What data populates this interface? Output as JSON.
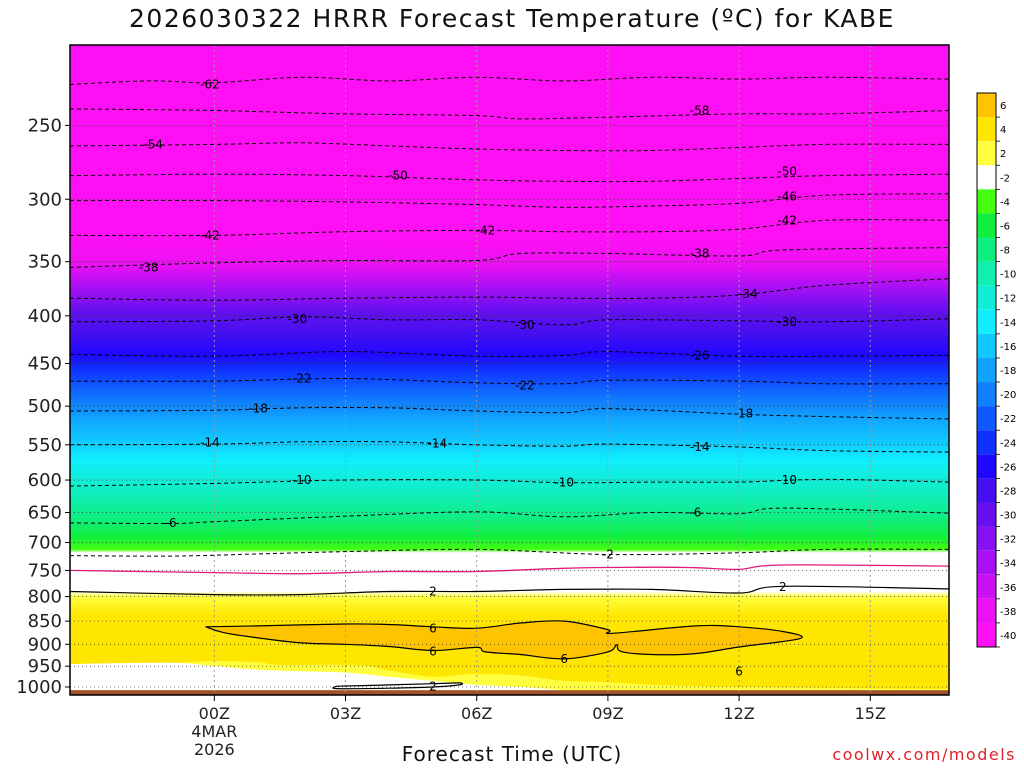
{
  "header": {
    "title": "2026030322 HRRR Forecast Temperature (ºC) for KABE",
    "xaxis_title": "Forecast Time (UTC)",
    "watermark": "coolwx.com/models"
  },
  "chart_data": {
    "type": "heatmap",
    "title": "2026030322 HRRR Forecast Temperature (ºC) for KABE",
    "xlabel": "Forecast Time (UTC)",
    "ylabel": "",
    "y_axis": {
      "scale": "log-pressure",
      "units": "hPa",
      "range": [
        1020,
        205
      ],
      "ticks": [
        250,
        300,
        350,
        400,
        450,
        500,
        550,
        600,
        650,
        700,
        750,
        800,
        850,
        900,
        950,
        1000
      ]
    },
    "x_axis": {
      "units": "hours since 2026-03-04 00Z",
      "range": [
        -3.3,
        16.8
      ],
      "ticks": [
        {
          "hour": 0,
          "label": "00Z",
          "sub": [
            "4MAR",
            "2026"
          ]
        },
        {
          "hour": 3,
          "label": "03Z",
          "sub": []
        },
        {
          "hour": 6,
          "label": "06Z",
          "sub": []
        },
        {
          "hour": 9,
          "label": "09Z",
          "sub": []
        },
        {
          "hour": 12,
          "label": "12Z",
          "sub": []
        },
        {
          "hour": 15,
          "label": "15Z",
          "sub": []
        }
      ]
    },
    "grid": true,
    "ground_pressure": 1008,
    "ground_color": "#a0522d",
    "freezing_line": {
      "color": "#e01a7a",
      "pressure": 750
    },
    "colorbar": {
      "location": "right",
      "labels": [
        "6",
        "4",
        "2",
        "-2",
        "-4",
        "-6",
        "-8",
        "-10",
        "-12",
        "-14",
        "-16",
        "-18",
        "-20",
        "-22",
        "-24",
        "-26",
        "-28",
        "-30",
        "-32",
        "-34",
        "-36",
        "-38",
        "-40"
      ],
      "colors": [
        "#ffc400",
        "#ffe600",
        "#ffff40",
        "#ffffff",
        "#44ff10",
        "#10ee40",
        "#10ee80",
        "#10eeb0",
        "#10eed8",
        "#10eeff",
        "#10c8ff",
        "#10a4ff",
        "#1080ff",
        "#1058ff",
        "#1030ff",
        "#2008ff",
        "#4410f0",
        "#6610f0",
        "#8810f4",
        "#aa10f4",
        "#cc10f4",
        "#ee10f4",
        "#ff10f4"
      ]
    },
    "contours": [
      {
        "value": -62,
        "label": "-62",
        "points": [
          [
            -3.3,
            226
          ],
          [
            -1.5,
            224
          ],
          [
            0,
            225
          ],
          [
            2,
            222
          ],
          [
            4,
            224
          ],
          [
            6,
            222
          ],
          [
            8,
            224
          ],
          [
            10,
            222
          ],
          [
            12,
            223
          ],
          [
            14,
            222
          ],
          [
            16.8,
            223
          ]
        ]
      },
      {
        "value": -58,
        "label": "-58",
        "points": [
          [
            -3.3,
            240
          ],
          [
            0,
            241
          ],
          [
            3,
            243
          ],
          [
            6,
            244
          ],
          [
            7,
            246
          ],
          [
            9,
            245
          ],
          [
            12,
            243
          ],
          [
            14,
            243
          ],
          [
            16.8,
            241
          ]
        ]
      },
      {
        "value": -54,
        "label": "-54",
        "points": [
          [
            -3.3,
            263
          ],
          [
            0,
            262
          ],
          [
            2,
            261
          ],
          [
            4,
            263
          ],
          [
            6,
            265
          ],
          [
            8,
            266
          ],
          [
            10,
            266
          ],
          [
            12,
            264
          ],
          [
            14,
            262
          ],
          [
            16.8,
            262
          ]
        ]
      },
      {
        "value": -50,
        "label": "-50",
        "points": [
          [
            -3.3,
            283
          ],
          [
            0,
            282
          ],
          [
            3,
            283
          ],
          [
            6,
            286
          ],
          [
            8,
            287
          ],
          [
            10,
            287
          ],
          [
            12,
            285
          ],
          [
            14,
            283
          ],
          [
            16.8,
            282
          ]
        ]
      },
      {
        "value": -46,
        "label": "-46",
        "points": [
          [
            -3.3,
            301
          ],
          [
            0,
            301
          ],
          [
            3,
            302
          ],
          [
            6,
            304
          ],
          [
            8,
            306
          ],
          [
            10,
            305
          ],
          [
            12,
            303
          ],
          [
            14,
            297
          ],
          [
            16.8,
            296
          ]
        ]
      },
      {
        "value": -42,
        "label": "-42",
        "points": [
          [
            -3.3,
            328
          ],
          [
            0,
            328
          ],
          [
            3,
            325
          ],
          [
            6,
            324
          ],
          [
            8,
            325
          ],
          [
            10,
            325
          ],
          [
            12,
            323
          ],
          [
            14,
            316
          ],
          [
            16.8,
            316
          ]
        ]
      },
      {
        "value": -38,
        "label": "-38",
        "points": [
          [
            -3.3,
            355
          ],
          [
            0,
            351
          ],
          [
            3,
            349
          ],
          [
            6,
            349
          ],
          [
            7,
            343
          ],
          [
            9,
            343
          ],
          [
            12,
            345
          ],
          [
            13,
            340
          ],
          [
            16.8,
            338
          ]
        ]
      },
      {
        "value": -34,
        "label": "-34",
        "points": [
          [
            -3.3,
            383
          ],
          [
            0,
            385
          ],
          [
            3,
            383
          ],
          [
            6,
            382
          ],
          [
            8,
            383
          ],
          [
            10,
            383
          ],
          [
            12,
            380
          ],
          [
            14,
            371
          ],
          [
            16.8,
            365
          ]
        ]
      },
      {
        "value": -30,
        "label": "-30",
        "points": [
          [
            -3.3,
            406
          ],
          [
            0,
            405
          ],
          [
            2,
            401
          ],
          [
            4,
            404
          ],
          [
            6,
            404
          ],
          [
            8,
            409
          ],
          [
            9,
            404
          ],
          [
            12,
            405
          ],
          [
            14,
            406
          ],
          [
            16.8,
            403
          ]
        ]
      },
      {
        "value": -26,
        "label": "-26",
        "points": [
          [
            -3.3,
            440
          ],
          [
            0,
            442
          ],
          [
            3,
            437
          ],
          [
            6,
            442
          ],
          [
            8,
            441
          ],
          [
            9,
            437
          ],
          [
            12,
            442
          ],
          [
            14,
            442
          ],
          [
            16.8,
            441
          ]
        ]
      },
      {
        "value": -22,
        "label": "-22",
        "points": [
          [
            -3.3,
            470
          ],
          [
            0,
            470
          ],
          [
            3,
            467
          ],
          [
            6,
            472
          ],
          [
            8,
            473
          ],
          [
            9,
            469
          ],
          [
            12,
            470
          ],
          [
            14,
            473
          ],
          [
            16.8,
            473
          ]
        ]
      },
      {
        "value": -18,
        "label": "-18",
        "points": [
          [
            -3.3,
            506
          ],
          [
            0,
            505
          ],
          [
            2,
            502
          ],
          [
            4,
            502
          ],
          [
            6,
            506
          ],
          [
            8,
            508
          ],
          [
            9,
            503
          ],
          [
            12,
            510
          ],
          [
            14,
            513
          ],
          [
            16.8,
            516
          ]
        ]
      },
      {
        "value": -14,
        "label": "-14",
        "points": [
          [
            -3.3,
            550
          ],
          [
            0,
            549
          ],
          [
            2,
            546
          ],
          [
            4,
            546
          ],
          [
            6,
            550
          ],
          [
            8,
            552
          ],
          [
            9,
            549
          ],
          [
            12,
            553
          ],
          [
            14,
            558
          ],
          [
            16.8,
            560
          ]
        ]
      },
      {
        "value": -10,
        "label": "-10",
        "points": [
          [
            -3.3,
            609
          ],
          [
            0,
            605
          ],
          [
            3,
            600
          ],
          [
            6,
            600
          ],
          [
            8,
            604
          ],
          [
            10,
            603
          ],
          [
            12,
            603
          ],
          [
            14,
            599
          ],
          [
            16.8,
            603
          ]
        ]
      },
      {
        "value": -6,
        "label": "-6",
        "points": [
          [
            -3.3,
            667
          ],
          [
            -1,
            668
          ],
          [
            0,
            665
          ],
          [
            3,
            656
          ],
          [
            6,
            649
          ],
          [
            8,
            657
          ],
          [
            10,
            650
          ],
          [
            12,
            652
          ],
          [
            13,
            643
          ],
          [
            16.8,
            651
          ]
        ]
      },
      {
        "value": -2,
        "label": "-2",
        "points": [
          [
            -3.3,
            723
          ],
          [
            -1,
            724
          ],
          [
            1,
            720
          ],
          [
            3,
            716
          ],
          [
            6,
            712
          ],
          [
            9,
            721
          ],
          [
            12,
            718
          ],
          [
            14,
            712
          ],
          [
            16.8,
            712
          ]
        ]
      },
      {
        "value": 2,
        "label": "2",
        "points": [
          [
            -3.3,
            790
          ],
          [
            0,
            796
          ],
          [
            2,
            796
          ],
          [
            4,
            790
          ],
          [
            6,
            790
          ],
          [
            8,
            786
          ],
          [
            10,
            786
          ],
          [
            12,
            793
          ],
          [
            13,
            780
          ],
          [
            16.8,
            785
          ]
        ]
      },
      {
        "value": 6,
        "label": "6",
        "points": [
          [
            -0.2,
            862
          ],
          [
            1,
            860
          ],
          [
            3,
            856
          ],
          [
            4,
            857
          ],
          [
            5,
            862
          ],
          [
            6,
            865
          ],
          [
            7,
            854
          ],
          [
            8,
            850
          ],
          [
            9.0,
            868
          ],
          [
            9.1,
            876
          ],
          [
            11,
            860
          ],
          [
            12,
            862
          ],
          [
            13,
            872
          ],
          [
            13.4,
            887
          ],
          [
            12,
            906
          ],
          [
            11,
            921
          ],
          [
            10,
            923
          ],
          [
            9.3,
            916
          ],
          [
            9.2,
            901
          ],
          [
            9,
            917
          ],
          [
            8,
            933
          ],
          [
            7,
            923
          ],
          [
            6.2,
            917
          ],
          [
            6,
            907
          ],
          [
            5,
            914
          ],
          [
            4,
            905
          ],
          [
            3,
            900
          ],
          [
            2,
            897
          ],
          [
            1,
            886
          ],
          [
            0.2,
            874
          ],
          [
            -0.2,
            862
          ]
        ]
      },
      {
        "value": 2,
        "label": "2",
        "points": [
          [
            2.8,
            998
          ],
          [
            4,
            995
          ],
          [
            5,
            992
          ],
          [
            5.6,
            990
          ],
          [
            5.6,
            995
          ],
          [
            5,
            1000
          ],
          [
            4,
            1003
          ],
          [
            2.8,
            1004
          ],
          [
            2.8,
            998
          ]
        ]
      }
    ],
    "contour_labels": [
      {
        "text": "-62",
        "at": [
          -0.1,
          226
        ]
      },
      {
        "text": "-58",
        "at": [
          11.1,
          241
        ]
      },
      {
        "text": "-54",
        "at": [
          -1.4,
          262
        ]
      },
      {
        "text": "-50",
        "at": [
          4.2,
          283
        ]
      },
      {
        "text": "-50",
        "at": [
          13.1,
          280
        ]
      },
      {
        "text": "-46",
        "at": [
          13.1,
          298
        ]
      },
      {
        "text": "-42",
        "at": [
          -0.1,
          328
        ]
      },
      {
        "text": "-42",
        "at": [
          6.2,
          324
        ]
      },
      {
        "text": "-42",
        "at": [
          13.1,
          316
        ]
      },
      {
        "text": "-38",
        "at": [
          -1.5,
          355
        ]
      },
      {
        "text": "-38",
        "at": [
          11.1,
          343
        ]
      },
      {
        "text": "-34",
        "at": [
          12.2,
          379
        ]
      },
      {
        "text": "-30",
        "at": [
          1.9,
          403
        ]
      },
      {
        "text": "-30",
        "at": [
          7.1,
          409
        ]
      },
      {
        "text": "-30",
        "at": [
          13.1,
          406
        ]
      },
      {
        "text": "-26",
        "at": [
          11.1,
          441
        ]
      },
      {
        "text": "-22",
        "at": [
          2.0,
          467
        ]
      },
      {
        "text": "-22",
        "at": [
          7.1,
          475
        ]
      },
      {
        "text": "-18",
        "at": [
          1.0,
          503
        ]
      },
      {
        "text": "-18",
        "at": [
          12.1,
          509
        ]
      },
      {
        "text": "-14",
        "at": [
          -0.1,
          547
        ]
      },
      {
        "text": "-14",
        "at": [
          5.1,
          548
        ]
      },
      {
        "text": "-14",
        "at": [
          11.1,
          553
        ]
      },
      {
        "text": "-10",
        "at": [
          2.0,
          600
        ]
      },
      {
        "text": "-10",
        "at": [
          8.0,
          604
        ]
      },
      {
        "text": "-10",
        "at": [
          13.1,
          600
        ]
      },
      {
        "text": "-6",
        "at": [
          -1.0,
          667
        ]
      },
      {
        "text": "-6",
        "at": [
          11.0,
          650
        ]
      },
      {
        "text": "-2",
        "at": [
          9.0,
          721
        ]
      },
      {
        "text": "2",
        "at": [
          5.0,
          790
        ]
      },
      {
        "text": "2",
        "at": [
          13.0,
          781
        ]
      },
      {
        "text": "6",
        "at": [
          5.0,
          866
        ]
      },
      {
        "text": "6",
        "at": [
          5.0,
          916
        ]
      },
      {
        "text": "6",
        "at": [
          8.0,
          933
        ]
      },
      {
        "text": "6",
        "at": [
          12.0,
          962
        ]
      },
      {
        "text": "2",
        "at": [
          5.0,
          999
        ]
      }
    ]
  }
}
